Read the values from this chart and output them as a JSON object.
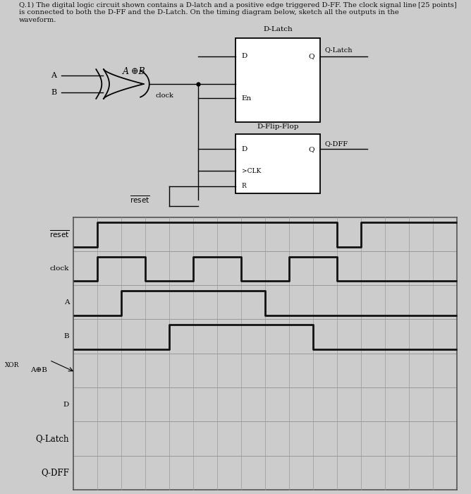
{
  "bg_color": "#cccccc",
  "paper_color": "#f0eeeb",
  "waveform_bg": "#e8e6e0",
  "row_labels": [
    "reset",
    "clock",
    "A",
    "B",
    "XOR_AeB",
    "D",
    "Q-Latch",
    "Q-DFF"
  ],
  "n_cols": 16,
  "reset_wave": [
    0,
    1,
    1,
    1,
    1,
    1,
    1,
    1,
    1,
    1,
    1,
    0,
    1,
    1,
    1,
    1,
    1
  ],
  "clock_wave": [
    0,
    1,
    1,
    0,
    0,
    1,
    1,
    0,
    0,
    1,
    1,
    0,
    0,
    0,
    0,
    0,
    0
  ],
  "A_wave": [
    0,
    0,
    1,
    1,
    1,
    1,
    1,
    1,
    0,
    0,
    0,
    0,
    0,
    0,
    0,
    0,
    0
  ],
  "B_wave": [
    0,
    0,
    0,
    0,
    1,
    1,
    1,
    1,
    1,
    1,
    0,
    0,
    0,
    0,
    0,
    0,
    0
  ]
}
